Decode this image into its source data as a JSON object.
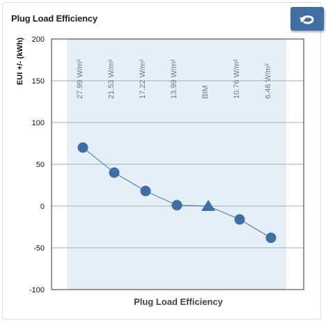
{
  "panel": {
    "title": "Plug Load Efficiency"
  },
  "back_button": {
    "icon": "return-arrow-icon",
    "color": "#3f6fa3"
  },
  "chart_data": {
    "type": "line",
    "title": "",
    "xlabel": "Plug Load Efficiency",
    "ylabel": "EUI +/- (kWh)",
    "ylim": [
      -100,
      200
    ],
    "yticks": [
      200,
      150,
      100,
      50,
      0,
      -50,
      -100
    ],
    "categories": [
      "27.99 W/m²",
      "21.53 W/m²",
      "17.22 W/m²",
      "13.99 W/m²",
      "BIM",
      "10.76 W/m²",
      "6.46 W/m²"
    ],
    "series": [
      {
        "values": [
          70,
          40,
          18,
          1,
          0,
          -16,
          -38
        ],
        "markers": [
          "circle",
          "circle",
          "circle",
          "circle",
          "triangle",
          "circle",
          "circle"
        ],
        "color": "#3e6fa4"
      }
    ],
    "band_color": "#e4eff8",
    "grid": true,
    "legend": "none"
  }
}
